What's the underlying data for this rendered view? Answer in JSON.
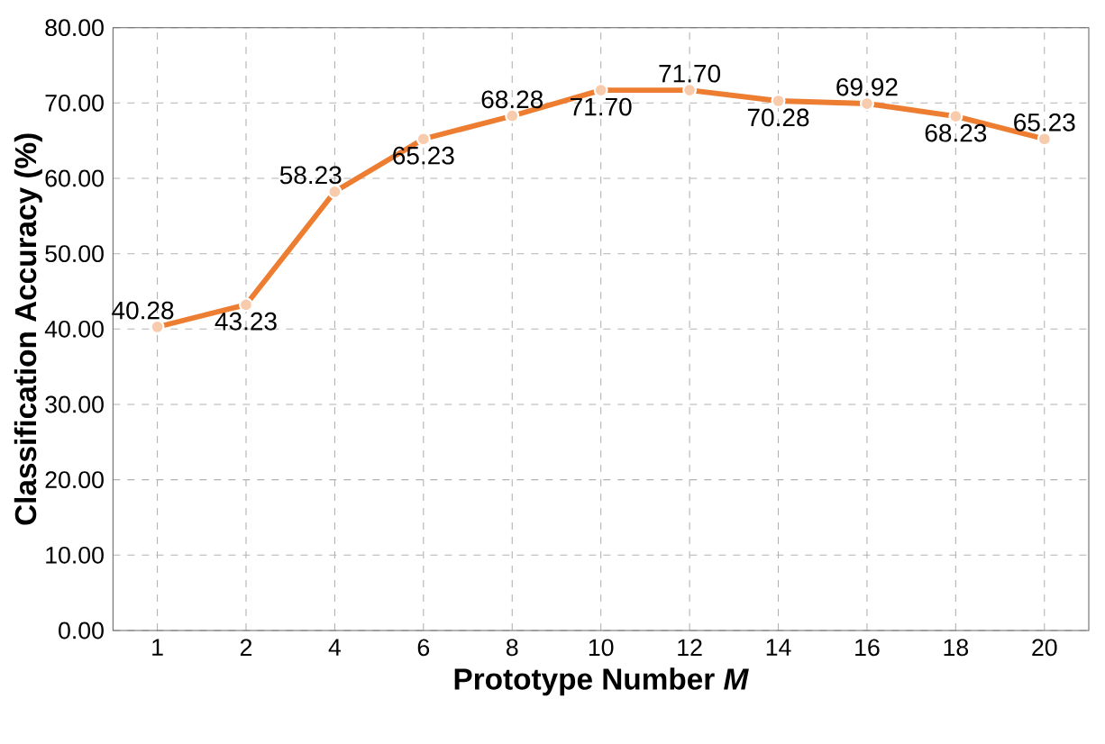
{
  "chart_data": {
    "type": "line",
    "xlabel": "Prototype Number *M*",
    "ylabel": "Classification Accuracy  (%)",
    "categories": [
      "1",
      "2",
      "4",
      "6",
      "8",
      "10",
      "12",
      "14",
      "16",
      "18",
      "20"
    ],
    "series": [
      {
        "color": "#ed7d31",
        "values": [
          40.28,
          43.23,
          58.23,
          65.23,
          68.28,
          71.7,
          71.7,
          70.28,
          69.92,
          68.23,
          65.23
        ],
        "value_labels": [
          "40.28",
          "43.23",
          "58.23",
          "65.23",
          "68.28",
          "71.70",
          "71.70",
          "70.28",
          "69.92",
          "68.23",
          "65.23"
        ]
      }
    ],
    "ylim": [
      0,
      80
    ],
    "yticks": [
      {
        "value": 0,
        "label": "0.00"
      },
      {
        "value": 10,
        "label": "10.00"
      },
      {
        "value": 20,
        "label": "20.00"
      },
      {
        "value": 30,
        "label": "30.00"
      },
      {
        "value": 40,
        "label": "40.00"
      },
      {
        "value": 50,
        "label": "50.00"
      },
      {
        "value": 60,
        "label": "60.00"
      },
      {
        "value": 70,
        "label": "70.00"
      },
      {
        "value": 80,
        "label": "80.00"
      }
    ],
    "grid": true,
    "marker": "circle",
    "line_style": "solid"
  }
}
